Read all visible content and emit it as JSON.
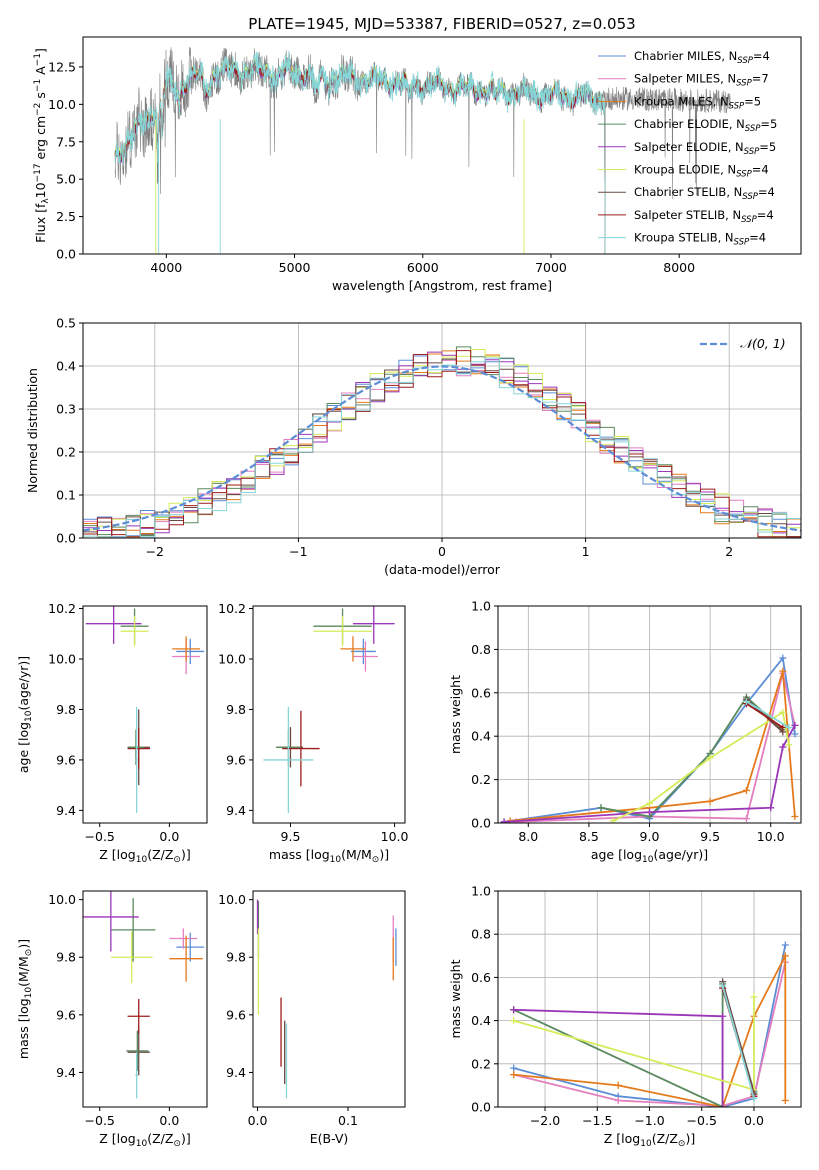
{
  "colors": {
    "series": [
      "#5b8ed6",
      "#e37fbf",
      "#e57a1c",
      "#5a8a5e",
      "#9b36b8",
      "#d4ec5a",
      "#6b4a45",
      "#9e1c1c",
      "#86d6d8"
    ],
    "gauss": "#5b8ed6",
    "data_spectrum": "#808080"
  },
  "legend_series": [
    {
      "base": "Chabrier MILES, N",
      "sub": "SSP",
      "tail": "=4"
    },
    {
      "base": "Salpeter MILES, N",
      "sub": "SSP",
      "tail": "=7"
    },
    {
      "base": "Kroupa MILES, N",
      "sub": "SSP",
      "tail": "=5"
    },
    {
      "base": "Chabrier ELODIE, N",
      "sub": "SSP",
      "tail": "=5"
    },
    {
      "base": "Salpeter ELODIE, N",
      "sub": "SSP",
      "tail": "=5"
    },
    {
      "base": "Kroupa ELODIE, N",
      "sub": "SSP",
      "tail": "=4"
    },
    {
      "base": "Chabrier STELIB, N",
      "sub": "SSP",
      "tail": "=4"
    },
    {
      "base": "Salpeter STELIB, N",
      "sub": "SSP",
      "tail": "=4"
    },
    {
      "base": "Kroupa STELIB, N",
      "sub": "SSP",
      "tail": "=4"
    }
  ],
  "chart_data": [
    {
      "id": "spectrum",
      "type": "line",
      "title": "PLATE=1945, MJD=53387, FIBERID=0527, z=0.053",
      "xlabel": "wavelength [Angstrom, rest frame]",
      "ylabel_parts": [
        "Flux [f",
        "λ",
        "10",
        "−17",
        " erg cm",
        "−2",
        " s",
        "−1",
        " A",
        "−1",
        "]"
      ],
      "xlim": [
        3350,
        8950
      ],
      "ylim": [
        0,
        14.5
      ],
      "xticks": [
        4000,
        5000,
        6000,
        7000,
        8000
      ],
      "yticks": [
        0.0,
        2.5,
        5.0,
        7.5,
        10.0,
        12.5
      ],
      "legend": "top-right",
      "continuum": {
        "x": [
          3600,
          3800,
          4000,
          4200,
          4500,
          5000,
          5500,
          6000,
          6500,
          7000,
          7400
        ],
        "y": [
          6.5,
          8.5,
          10.5,
          11.8,
          12.2,
          12.1,
          11.7,
          11.3,
          10.9,
          10.6,
          10.3
        ]
      },
      "model_range": [
        3600,
        7420
      ],
      "data_range": [
        3600,
        8400
      ]
    },
    {
      "id": "residuals",
      "type": "step",
      "xlabel": "(data-model)/error",
      "ylabel": "Normed distribution",
      "xlim": [
        -2.5,
        2.5
      ],
      "ylim": [
        0,
        0.5
      ],
      "xticks": [
        -2,
        -1,
        0,
        1,
        2
      ],
      "yticks": [
        0.0,
        0.1,
        0.2,
        0.3,
        0.4,
        0.5
      ],
      "grid": true,
      "legend": "top-right",
      "gauss_label": "𝒩(0, 1)",
      "bin_width": 0.1
    },
    {
      "id": "age-Z",
      "type": "errorbar",
      "xlabel_parts": [
        "Z [log",
        "10",
        "(Z/Z",
        "⊙",
        ")]"
      ],
      "ylabel_parts": [
        "age  [log",
        "10",
        "(age/yr)]"
      ],
      "xlim": [
        -0.62,
        0.27
      ],
      "ylim": [
        9.35,
        10.21
      ],
      "xticks": [
        -0.5,
        0.0
      ],
      "yticks": [
        9.4,
        9.6,
        9.8,
        10.0,
        10.2
      ],
      "points": [
        {
          "s": 0,
          "x": 0.15,
          "y": 10.03,
          "xe": 0.1,
          "ye": 0.05
        },
        {
          "s": 1,
          "x": 0.12,
          "y": 10.01,
          "xe": 0.1,
          "ye": 0.07
        },
        {
          "s": 2,
          "x": 0.12,
          "y": 10.04,
          "xe": 0.1,
          "ye": 0.05
        },
        {
          "s": 3,
          "x": -0.25,
          "y": 10.13,
          "xe": 0.1,
          "ye": 0.07
        },
        {
          "s": 4,
          "x": -0.4,
          "y": 10.14,
          "xe": 0.2,
          "ye": 0.08
        },
        {
          "s": 5,
          "x": -0.25,
          "y": 10.11,
          "xe": 0.1,
          "ye": 0.06
        },
        {
          "s": 6,
          "x": -0.22,
          "y": 9.65,
          "xe": 0.08,
          "ye": 0.15
        },
        {
          "s": 7,
          "x": -0.22,
          "y": 9.645,
          "xe": 0.08,
          "ye": 0.08
        },
        {
          "s": 3,
          "x": -0.24,
          "y": 9.65,
          "xe": 0.06,
          "ye": 0.07
        },
        {
          "s": 8,
          "x": -0.235,
          "y": 9.6,
          "xe": 0.01,
          "ye": 0.21
        }
      ]
    },
    {
      "id": "age-mass",
      "type": "errorbar",
      "xlabel_parts": [
        "mass [log",
        "10",
        "(M/M",
        "⊙",
        ")]"
      ],
      "xlim": [
        9.32,
        10.05
      ],
      "ylim": [
        9.35,
        10.21
      ],
      "xticks": [
        9.5,
        10.0
      ],
      "yticks": [
        9.4,
        9.6,
        9.8,
        10.0,
        10.2
      ],
      "points": [
        {
          "s": 0,
          "x": 9.85,
          "y": 10.03,
          "xe": 0.06,
          "ye": 0.05
        },
        {
          "s": 1,
          "x": 9.86,
          "y": 10.01,
          "xe": 0.06,
          "ye": 0.06
        },
        {
          "s": 2,
          "x": 9.8,
          "y": 10.04,
          "xe": 0.06,
          "ye": 0.05
        },
        {
          "s": 3,
          "x": 9.75,
          "y": 10.13,
          "xe": 0.14,
          "ye": 0.07
        },
        {
          "s": 4,
          "x": 9.9,
          "y": 10.14,
          "xe": 0.1,
          "ye": 0.08
        },
        {
          "s": 5,
          "x": 9.75,
          "y": 10.11,
          "xe": 0.14,
          "ye": 0.06
        },
        {
          "s": 6,
          "x": 9.5,
          "y": 9.65,
          "xe": 0.06,
          "ye": 0.08
        },
        {
          "s": 7,
          "x": 9.55,
          "y": 9.645,
          "xe": 0.09,
          "ye": 0.15
        },
        {
          "s": 3,
          "x": 9.49,
          "y": 9.65,
          "xe": 0.06,
          "ye": 0.07
        },
        {
          "s": 8,
          "x": 9.49,
          "y": 9.6,
          "xe": 0.12,
          "ye": 0.21
        }
      ]
    },
    {
      "id": "weights-age",
      "type": "line",
      "xlabel_parts": [
        "age  [log",
        "10",
        "(age/yr)]"
      ],
      "ylabel": "mass weight",
      "xlim": [
        7.75,
        10.25
      ],
      "ylim": [
        0,
        1.0
      ],
      "xticks": [
        8.0,
        8.5,
        9.0,
        9.5,
        10.0
      ],
      "yticks": [
        0.0,
        0.2,
        0.4,
        0.6,
        0.8,
        1.0
      ],
      "grid": true,
      "series": [
        {
          "s": 0,
          "x": [
            7.8,
            8.6,
            9.0,
            9.5,
            9.8,
            10.1,
            10.2
          ],
          "y": [
            0.005,
            0.07,
            0.02,
            0.32,
            0.55,
            0.76,
            0.41
          ]
        },
        {
          "s": 1,
          "x": [
            7.9,
            9.0,
            9.8,
            10.1,
            10.2
          ],
          "y": [
            0.005,
            0.03,
            0.02,
            0.69,
            0.45
          ]
        },
        {
          "s": 2,
          "x": [
            7.85,
            9.0,
            9.5,
            9.8,
            10.1,
            10.2
          ],
          "y": [
            0.01,
            0.07,
            0.1,
            0.15,
            0.7,
            0.03
          ]
        },
        {
          "s": 3,
          "x": [
            8.6,
            9.0,
            9.5,
            9.8,
            10.1
          ],
          "y": [
            0.07,
            0.03,
            0.32,
            0.58,
            0.43
          ]
        },
        {
          "s": 4,
          "x": [
            7.8,
            9.0,
            10.0,
            10.1,
            10.2
          ],
          "y": [
            0.005,
            0.05,
            0.07,
            0.35,
            0.45
          ]
        },
        {
          "s": 5,
          "x": [
            8.7,
            9.0,
            9.5,
            10.1,
            10.15
          ],
          "y": [
            0.01,
            0.09,
            0.3,
            0.51,
            0.36
          ]
        },
        {
          "s": 6,
          "x": [
            9.8,
            10.1
          ],
          "y": [
            0.57,
            0.42
          ]
        },
        {
          "s": 7,
          "x": [
            9.8,
            10.1
          ],
          "y": [
            0.55,
            0.44
          ]
        },
        {
          "s": 8,
          "x": [
            9.8,
            10.15
          ],
          "y": [
            0.56,
            0.44
          ]
        }
      ]
    },
    {
      "id": "mass-Z",
      "type": "errorbar",
      "xlabel_parts": [
        "Z [log",
        "10",
        "(Z/Z",
        "⊙",
        ")]"
      ],
      "ylabel_parts": [
        "mass [log",
        "10",
        "(M/M",
        "⊙",
        ")]"
      ],
      "xlim": [
        -0.62,
        0.27
      ],
      "ylim": [
        9.28,
        10.03
      ],
      "xticks": [
        -0.5,
        0.0
      ],
      "yticks": [
        9.4,
        9.6,
        9.8,
        10.0
      ],
      "points": [
        {
          "s": 0,
          "x": 0.15,
          "y": 9.835,
          "xe": 0.1,
          "ye": 0.05
        },
        {
          "s": 1,
          "x": 0.1,
          "y": 9.865,
          "xe": 0.1,
          "ye": 0.035
        },
        {
          "s": 2,
          "x": 0.12,
          "y": 9.795,
          "xe": 0.12,
          "ye": 0.08
        },
        {
          "s": 3,
          "x": -0.26,
          "y": 9.895,
          "xe": 0.16,
          "ye": 0.11
        },
        {
          "s": 4,
          "x": -0.42,
          "y": 9.94,
          "xe": 0.2,
          "ye": 0.12
        },
        {
          "s": 5,
          "x": -0.27,
          "y": 9.8,
          "xe": 0.15,
          "ye": 0.09
        },
        {
          "s": 6,
          "x": -0.22,
          "y": 9.47,
          "xe": 0.08,
          "ye": 0.08
        },
        {
          "s": 7,
          "x": -0.22,
          "y": 9.595,
          "xe": 0.08,
          "ye": 0.06
        },
        {
          "s": 3,
          "x": -0.23,
          "y": 9.475,
          "xe": 0.08,
          "ye": 0.07
        },
        {
          "s": 8,
          "x": -0.235,
          "y": 9.39,
          "xe": 0.01,
          "ye": 0.08
        }
      ]
    },
    {
      "id": "mass-EBV",
      "type": "errorbar",
      "xlabel": "E(B-V)",
      "xlim": [
        -0.005,
        0.163
      ],
      "ylim": [
        9.28,
        10.03
      ],
      "xticks": [
        0.0,
        0.1
      ],
      "yticks": [
        9.4,
        9.6,
        9.8,
        10.0
      ],
      "points": [
        {
          "s": 0,
          "x": 0.153,
          "y": 9.835,
          "xe": 0.0,
          "ye": 0.065
        },
        {
          "s": 1,
          "x": 0.15,
          "y": 9.865,
          "xe": 0.0,
          "ye": 0.08
        },
        {
          "s": 2,
          "x": 0.15,
          "y": 9.795,
          "xe": 0.0,
          "ye": 0.075
        },
        {
          "s": 3,
          "x": 0.001,
          "y": 9.895,
          "xe": 0.0,
          "ye": 0.1
        },
        {
          "s": 4,
          "x": 0.0,
          "y": 9.94,
          "xe": 0.0,
          "ye": 0.06
        },
        {
          "s": 5,
          "x": 0.001,
          "y": 9.75,
          "xe": 0.0,
          "ye": 0.15
        },
        {
          "s": 6,
          "x": 0.03,
          "y": 9.47,
          "xe": 0.0,
          "ye": 0.11
        },
        {
          "s": 7,
          "x": 0.026,
          "y": 9.54,
          "xe": 0.0,
          "ye": 0.12
        },
        {
          "s": 8,
          "x": 0.032,
          "y": 9.44,
          "xe": 0.0,
          "ye": 0.13
        }
      ]
    },
    {
      "id": "weights-Z",
      "type": "line",
      "xlabel_parts": [
        "Z [log",
        "10",
        "(Z/Z",
        "⊙",
        ")]"
      ],
      "ylabel": "mass weight",
      "xlim": [
        -2.45,
        0.45
      ],
      "ylim": [
        0,
        1.0
      ],
      "xticks": [
        -2.0,
        -1.5,
        -1.0,
        -0.5,
        0.0
      ],
      "yticks": [
        0.0,
        0.2,
        0.4,
        0.6,
        0.8,
        1.0
      ],
      "grid": true,
      "series": [
        {
          "s": 0,
          "x": [
            -2.3,
            -1.3,
            -0.3,
            0.0,
            0.3
          ],
          "y": [
            0.18,
            0.05,
            0.0,
            0.04,
            0.75
          ]
        },
        {
          "s": 1,
          "x": [
            -2.3,
            -1.3,
            -0.3,
            0.0,
            0.3
          ],
          "y": [
            0.15,
            0.03,
            0.005,
            0.05,
            0.67
          ]
        },
        {
          "s": 2,
          "x": [
            -2.3,
            -1.3,
            -0.3,
            0.0,
            0.3,
            0.3
          ],
          "y": [
            0.15,
            0.1,
            0.0,
            0.42,
            0.7,
            0.03
          ]
        },
        {
          "s": 3,
          "x": [
            -2.3,
            -0.3,
            -0.3,
            0.0
          ],
          "y": [
            0.45,
            0.0,
            0.57,
            0.07
          ]
        },
        {
          "s": 4,
          "x": [
            -2.3,
            -0.3,
            -0.3
          ],
          "y": [
            0.45,
            0.42,
            0.0
          ]
        },
        {
          "s": 5,
          "x": [
            -2.3,
            0.0,
            0.0
          ],
          "y": [
            0.4,
            0.08,
            0.51
          ]
        },
        {
          "s": 6,
          "x": [
            -0.3,
            0.0
          ],
          "y": [
            0.58,
            0.06
          ]
        },
        {
          "s": 7,
          "x": [
            -0.3,
            0.0
          ],
          "y": [
            0.55,
            0.05
          ]
        },
        {
          "s": 8,
          "x": [
            -0.3,
            0.0
          ],
          "y": [
            0.56,
            0.04
          ]
        }
      ]
    }
  ]
}
